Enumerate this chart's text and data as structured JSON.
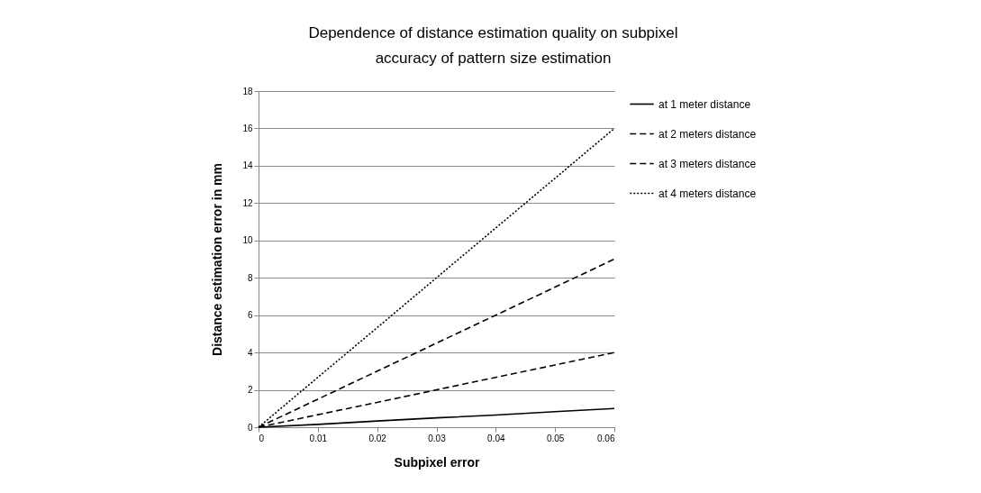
{
  "chart_data": {
    "type": "line",
    "title": "Dependence of distance estimation quality on subpixel accuracy of pattern size estimation",
    "xlabel": "Subpixel error",
    "ylabel": "Distance estimation error in mm",
    "x": [
      0,
      0.01,
      0.02,
      0.03,
      0.04,
      0.05,
      0.06
    ],
    "series": [
      {
        "name": "at 1 meter distance",
        "color": "#000000",
        "line_style": "solid",
        "values": [
          0,
          0.15,
          0.33,
          0.5,
          0.65,
          0.83,
          1
        ]
      },
      {
        "name": "at 2 meters distance",
        "color": "#000000",
        "line_style": "dashed",
        "values": [
          0,
          0.67,
          1.33,
          2,
          2.67,
          3.33,
          4
        ]
      },
      {
        "name": "at 3 meters distance",
        "color": "#000000",
        "line_style": "dashed",
        "values": [
          0,
          1.5,
          3,
          4.5,
          6,
          7.5,
          9
        ]
      },
      {
        "name": "at 4 meters distance",
        "color": "#000000",
        "line_style": "dotted",
        "values": [
          0,
          2.67,
          5.33,
          8,
          10.67,
          13.33,
          16
        ]
      }
    ],
    "xlim": [
      0,
      0.06
    ],
    "xticks": [
      0,
      0.01,
      0.02,
      0.03,
      0.04,
      0.05,
      0.06
    ],
    "ylim": [
      0,
      18
    ],
    "yticks": [
      0,
      2,
      4,
      6,
      8,
      10,
      12,
      14,
      16,
      18
    ],
    "grid": "y",
    "legend": "right",
    "marker": "none"
  }
}
